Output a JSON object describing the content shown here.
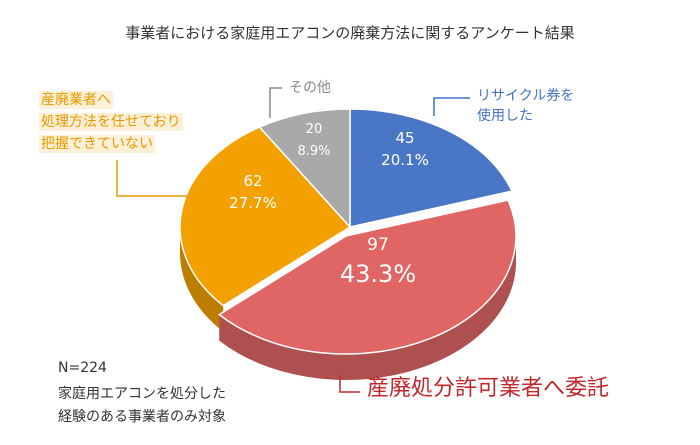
{
  "colors": {
    "recycle": "#4a76c6",
    "unknown": "#f2a100",
    "other": "#a9a9a9",
    "licensed": "#e06666",
    "label_blue": "#4472c4",
    "label_orange": "#e69a00",
    "label_grey": "#8a8a8a",
    "label_red": "#c0282c"
  },
  "chart_data": {
    "type": "pie",
    "title": "事業者における家庭用エアコンの廃棄方法に関するアンケート結果",
    "slices": [
      {
        "id": "recycle",
        "label_lines": [
          "リサイクル券を",
          "使用した"
        ],
        "value": 45,
        "percent": "20.1%"
      },
      {
        "id": "licensed",
        "label_lines": [
          "産廃処分許可業者へ委託"
        ],
        "value": 97,
        "percent": "43.3%"
      },
      {
        "id": "unknown",
        "label_lines": [
          "産廃業者へ",
          "処理方法を任せており",
          "把握できていない"
        ],
        "value": 62,
        "percent": "27.7%"
      },
      {
        "id": "other",
        "label_lines": [
          "その他"
        ],
        "value": 20,
        "percent": "8.9%"
      }
    ]
  },
  "notes": [
    "N=224",
    "家庭用エアコンを処分した",
    "経験のある事業者のみ対象"
  ]
}
